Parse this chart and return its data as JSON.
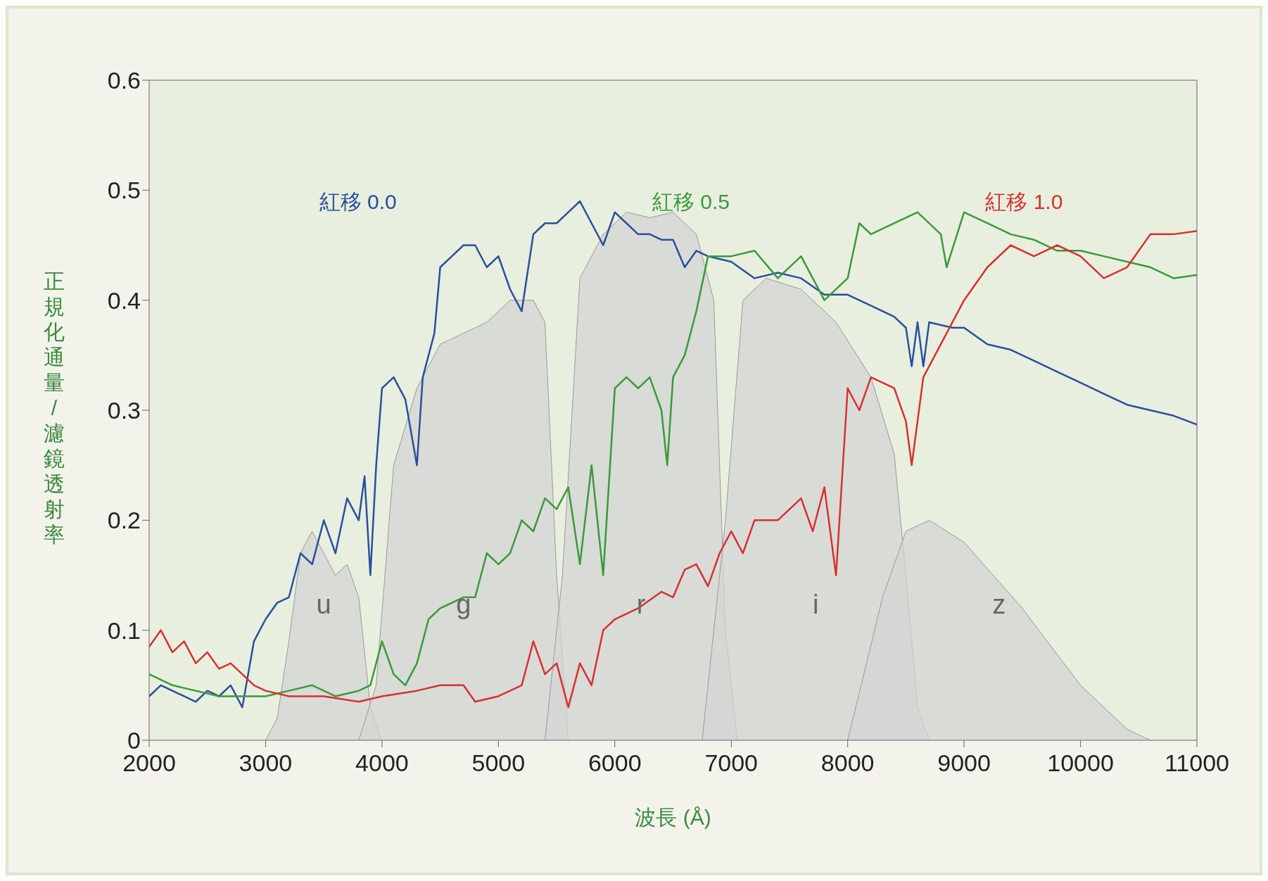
{
  "chart_data": {
    "type": "line",
    "xlabel": "波長 (Å)",
    "ylabel": "正規化通量 / 濾鏡透射率",
    "xlim": [
      2000,
      11000
    ],
    "ylim": [
      0,
      0.6
    ],
    "xticks": [
      2000,
      3000,
      4000,
      5000,
      6000,
      7000,
      8000,
      9000,
      10000,
      11000
    ],
    "yticks": [
      0,
      0.1,
      0.2,
      0.3,
      0.4,
      0.5,
      0.6
    ],
    "legend": "top",
    "marker": "none",
    "annotations": [
      "u",
      "g",
      "r",
      "i",
      "z"
    ],
    "series": [
      {
        "type": "area",
        "color": "#d4d4d4",
        "x": [
          3000,
          3100,
          3200,
          3300,
          3400,
          3500,
          3600,
          3700,
          3800,
          3900,
          4000
        ],
        "values": [
          0,
          0.02,
          0.09,
          0.17,
          0.19,
          0.17,
          0.15,
          0.16,
          0.13,
          0.03,
          0
        ]
      },
      {
        "type": "area",
        "color": "#d4d4d4",
        "x": [
          3800,
          3950,
          4100,
          4300,
          4500,
          4700,
          4900,
          5100,
          5300,
          5400,
          5500,
          5600
        ],
        "values": [
          0,
          0.05,
          0.25,
          0.32,
          0.36,
          0.37,
          0.38,
          0.4,
          0.4,
          0.38,
          0.15,
          0
        ]
      },
      {
        "type": "area",
        "color": "#d4d4d4",
        "x": [
          5400,
          5550,
          5700,
          5900,
          6100,
          6300,
          6500,
          6700,
          6850,
          6950,
          7050
        ],
        "values": [
          0,
          0.15,
          0.42,
          0.46,
          0.48,
          0.475,
          0.48,
          0.46,
          0.4,
          0.1,
          0
        ]
      },
      {
        "type": "area",
        "color": "#d4d4d4",
        "x": [
          6750,
          6950,
          7100,
          7300,
          7600,
          7900,
          8200,
          8400,
          8500,
          8600,
          8700
        ],
        "values": [
          0,
          0.2,
          0.4,
          0.42,
          0.41,
          0.38,
          0.33,
          0.26,
          0.15,
          0.03,
          0
        ]
      },
      {
        "type": "area",
        "color": "#d4d4d4",
        "x": [
          8000,
          8300,
          8500,
          8700,
          9000,
          9500,
          10000,
          10400,
          10600
        ],
        "values": [
          0,
          0.13,
          0.19,
          0.2,
          0.18,
          0.12,
          0.05,
          0.01,
          0
        ]
      },
      {
        "name": "紅移 0.0",
        "color": "#2a4f9c",
        "x": [
          2000,
          2100,
          2200,
          2300,
          2400,
          2500,
          2600,
          2700,
          2800,
          2900,
          3000,
          3100,
          3200,
          3300,
          3400,
          3500,
          3600,
          3700,
          3800,
          3850,
          3900,
          3950,
          4000,
          4100,
          4200,
          4300,
          4350,
          4450,
          4500,
          4600,
          4700,
          4800,
          4900,
          5000,
          5100,
          5200,
          5300,
          5400,
          5500,
          5600,
          5700,
          5800,
          5900,
          6000,
          6100,
          6200,
          6300,
          6400,
          6500,
          6600,
          6700,
          6800,
          7000,
          7200,
          7400,
          7600,
          7800,
          8000,
          8200,
          8400,
          8500,
          8550,
          8600,
          8650,
          8700,
          8900,
          9000,
          9200,
          9400,
          9600,
          9800,
          10000,
          10200,
          10400,
          10600,
          10800,
          11000
        ],
        "values": [
          0.04,
          0.05,
          0.045,
          0.04,
          0.035,
          0.045,
          0.04,
          0.05,
          0.03,
          0.09,
          0.11,
          0.125,
          0.13,
          0.17,
          0.16,
          0.2,
          0.17,
          0.22,
          0.2,
          0.24,
          0.15,
          0.25,
          0.32,
          0.33,
          0.31,
          0.25,
          0.33,
          0.37,
          0.43,
          0.44,
          0.45,
          0.45,
          0.43,
          0.44,
          0.41,
          0.39,
          0.46,
          0.47,
          0.47,
          0.48,
          0.49,
          0.47,
          0.45,
          0.48,
          0.47,
          0.46,
          0.46,
          0.455,
          0.455,
          0.43,
          0.445,
          0.44,
          0.435,
          0.42,
          0.425,
          0.42,
          0.405,
          0.405,
          0.395,
          0.385,
          0.375,
          0.34,
          0.38,
          0.34,
          0.38,
          0.375,
          0.375,
          0.36,
          0.355,
          0.345,
          0.335,
          0.325,
          0.315,
          0.305,
          0.3,
          0.295,
          0.287
        ]
      },
      {
        "name": "紅移 0.5",
        "color": "#3a9a3a",
        "x": [
          2000,
          2200,
          2400,
          2600,
          2800,
          3000,
          3200,
          3400,
          3600,
          3800,
          3900,
          4000,
          4100,
          4200,
          4300,
          4400,
          4500,
          4600,
          4700,
          4800,
          4900,
          5000,
          5100,
          5200,
          5300,
          5400,
          5500,
          5600,
          5700,
          5800,
          5900,
          6000,
          6100,
          6200,
          6300,
          6400,
          6450,
          6500,
          6600,
          6700,
          6800,
          7000,
          7200,
          7400,
          7600,
          7800,
          8000,
          8100,
          8200,
          8400,
          8600,
          8800,
          8850,
          9000,
          9200,
          9400,
          9600,
          9800,
          10000,
          10200,
          10400,
          10600,
          10800,
          11000
        ],
        "values": [
          0.06,
          0.05,
          0.045,
          0.04,
          0.04,
          0.04,
          0.045,
          0.05,
          0.04,
          0.045,
          0.05,
          0.09,
          0.06,
          0.05,
          0.07,
          0.11,
          0.12,
          0.125,
          0.13,
          0.13,
          0.17,
          0.16,
          0.17,
          0.2,
          0.19,
          0.22,
          0.21,
          0.23,
          0.16,
          0.25,
          0.15,
          0.32,
          0.33,
          0.32,
          0.33,
          0.3,
          0.25,
          0.33,
          0.35,
          0.39,
          0.44,
          0.44,
          0.445,
          0.42,
          0.44,
          0.4,
          0.42,
          0.47,
          0.46,
          0.47,
          0.48,
          0.46,
          0.43,
          0.48,
          0.47,
          0.46,
          0.455,
          0.445,
          0.445,
          0.44,
          0.435,
          0.43,
          0.42,
          0.423
        ]
      },
      {
        "name": "紅移 1.0",
        "color": "#d83030",
        "x": [
          2000,
          2100,
          2200,
          2300,
          2400,
          2500,
          2600,
          2700,
          2800,
          2900,
          3000,
          3200,
          3500,
          3800,
          4000,
          4300,
          4500,
          4700,
          4800,
          5000,
          5200,
          5300,
          5400,
          5500,
          5600,
          5700,
          5800,
          5900,
          6000,
          6200,
          6400,
          6500,
          6600,
          6700,
          6800,
          6900,
          7000,
          7100,
          7200,
          7400,
          7600,
          7700,
          7800,
          7900,
          8000,
          8100,
          8200,
          8400,
          8500,
          8550,
          8650,
          8800,
          9000,
          9200,
          9400,
          9600,
          9800,
          10000,
          10200,
          10400,
          10600,
          10800,
          11000
        ],
        "values": [
          0.085,
          0.1,
          0.08,
          0.09,
          0.07,
          0.08,
          0.065,
          0.07,
          0.06,
          0.05,
          0.045,
          0.04,
          0.04,
          0.035,
          0.04,
          0.045,
          0.05,
          0.05,
          0.035,
          0.04,
          0.05,
          0.09,
          0.06,
          0.07,
          0.03,
          0.07,
          0.05,
          0.1,
          0.11,
          0.12,
          0.135,
          0.13,
          0.155,
          0.16,
          0.14,
          0.17,
          0.19,
          0.17,
          0.2,
          0.2,
          0.22,
          0.19,
          0.23,
          0.15,
          0.32,
          0.3,
          0.33,
          0.32,
          0.29,
          0.25,
          0.33,
          0.36,
          0.4,
          0.43,
          0.45,
          0.44,
          0.45,
          0.44,
          0.42,
          0.43,
          0.46,
          0.46,
          0.463
        ]
      }
    ]
  }
}
